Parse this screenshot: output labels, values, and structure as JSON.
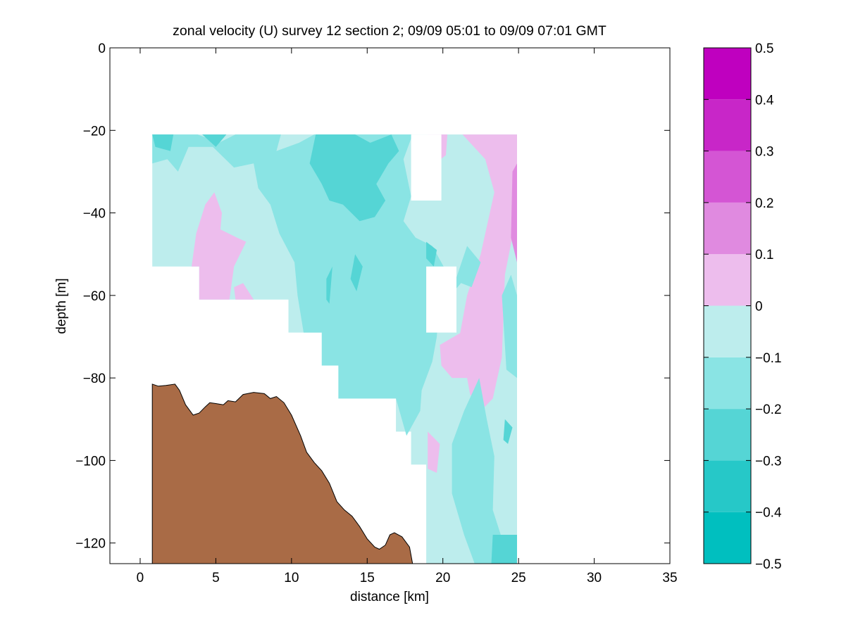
{
  "chart_data": {
    "type": "heatmap",
    "title": "zonal velocity (U) survey 12 section 2; 09/09 05:01 to 09/09 07:01 GMT",
    "xlabel": "distance [km]",
    "ylabel": "depth [m]",
    "xlim": [
      -2,
      35
    ],
    "ylim": [
      -125,
      0
    ],
    "x_ticks": [
      0,
      5,
      10,
      15,
      20,
      25,
      30,
      35
    ],
    "y_ticks": [
      0,
      -20,
      -40,
      -60,
      -80,
      -100,
      -120
    ],
    "x_tick_labels": [
      "0",
      "5",
      "10",
      "15",
      "20",
      "25",
      "30",
      "35"
    ],
    "y_tick_labels": [
      "0",
      "−20",
      "−40",
      "−60",
      "−80",
      "−100",
      "−120"
    ],
    "colorbar": {
      "range": [
        -0.5,
        0.5
      ],
      "levels": [
        -0.5,
        -0.4,
        -0.3,
        -0.2,
        -0.1,
        0,
        0.1,
        0.2,
        0.3,
        0.4,
        0.5
      ],
      "tick_labels": [
        "−0.5",
        "−0.4",
        "−0.3",
        "−0.2",
        "−0.1",
        "0",
        "0.1",
        "0.2",
        "0.3",
        "0.4",
        "0.5"
      ],
      "colors": [
        "#00bfbf",
        "#26c8c8",
        "#55d5d5",
        "#8ae4e4",
        "#bdeded",
        "#edbded",
        "#e08ae0",
        "#d455d4",
        "#c826c8",
        "#bf00bf"
      ]
    },
    "bathymetry": {
      "color": "#a96b46",
      "points": [
        [
          0.8,
          -81.5
        ],
        [
          1.2,
          -82
        ],
        [
          1.7,
          -81.8
        ],
        [
          2.3,
          -81.5
        ],
        [
          2.6,
          -83
        ],
        [
          3,
          -86.5
        ],
        [
          3.5,
          -89
        ],
        [
          3.9,
          -88.5
        ],
        [
          4.3,
          -87
        ],
        [
          4.6,
          -86
        ],
        [
          5,
          -86.2
        ],
        [
          5.5,
          -86.5
        ],
        [
          5.8,
          -85.5
        ],
        [
          6.3,
          -85.8
        ],
        [
          6.8,
          -84
        ],
        [
          7.5,
          -83.5
        ],
        [
          8.2,
          -83.8
        ],
        [
          8.6,
          -85
        ],
        [
          9,
          -84.5
        ],
        [
          9.5,
          -86
        ],
        [
          10,
          -89
        ],
        [
          10.6,
          -94
        ],
        [
          11,
          -98
        ],
        [
          11.5,
          -100.5
        ],
        [
          12,
          -102.5
        ],
        [
          12.5,
          -105.5
        ],
        [
          13,
          -110
        ],
        [
          13.5,
          -112
        ],
        [
          14,
          -113.5
        ],
        [
          14.5,
          -116
        ],
        [
          15,
          -119
        ],
        [
          15.5,
          -121
        ],
        [
          15.8,
          -121.5
        ],
        [
          16.2,
          -120.5
        ],
        [
          16.5,
          -118
        ],
        [
          16.8,
          -117.5
        ],
        [
          17.3,
          -118.5
        ],
        [
          17.8,
          -121
        ],
        [
          18,
          -125
        ]
      ]
    },
    "regions": [
      {
        "v": -0.05,
        "poly": [
          [
            0.8,
            -21
          ],
          [
            24.9,
            -21
          ],
          [
            24.9,
            -125
          ],
          [
            18.9,
            -125
          ],
          [
            18.9,
            -101
          ],
          [
            17.9,
            -101
          ],
          [
            17.9,
            -93
          ],
          [
            16.9,
            -93
          ],
          [
            16.9,
            -85
          ],
          [
            13.1,
            -85
          ],
          [
            13.1,
            -77
          ],
          [
            12,
            -77
          ],
          [
            12,
            -69
          ],
          [
            9.8,
            -69
          ],
          [
            9.8,
            -61
          ],
          [
            3.9,
            -61
          ],
          [
            3.9,
            -53
          ],
          [
            0.8,
            -53
          ]
        ]
      },
      {
        "v": 0.05,
        "poly": [
          [
            21.3,
            -21
          ],
          [
            24.9,
            -21
          ],
          [
            24.9,
            -40
          ],
          [
            24.1,
            -55
          ],
          [
            23.9,
            -75
          ],
          [
            23.3,
            -85
          ],
          [
            22.5,
            -88
          ],
          [
            21.8,
            -84
          ],
          [
            21.1,
            -70
          ],
          [
            21.6,
            -60
          ],
          [
            22.5,
            -50
          ],
          [
            23.4,
            -35
          ],
          [
            22.8,
            -27
          ]
        ]
      },
      {
        "v": 0.05,
        "poly": [
          [
            19,
            -21
          ],
          [
            20.3,
            -21
          ],
          [
            20.2,
            -26
          ],
          [
            19.5,
            -28
          ]
        ]
      },
      {
        "v": 0.05,
        "poly": [
          [
            19.8,
            -72
          ],
          [
            21.2,
            -69
          ],
          [
            21.6,
            -80
          ],
          [
            20.6,
            -80
          ],
          [
            19.9,
            -77
          ]
        ]
      },
      {
        "v": 0.05,
        "poly": [
          [
            19,
            -93
          ],
          [
            19.8,
            -96
          ],
          [
            19.6,
            -103
          ],
          [
            19,
            -102
          ]
        ]
      },
      {
        "v": 0.05,
        "poly": [
          [
            3.4,
            -53
          ],
          [
            3.7,
            -45
          ],
          [
            4.3,
            -38
          ],
          [
            4.9,
            -35
          ],
          [
            5.4,
            -40
          ],
          [
            5.3,
            -44
          ],
          [
            6.4,
            -46
          ],
          [
            7,
            -47
          ],
          [
            6.2,
            -53
          ],
          [
            5.9,
            -61
          ],
          [
            3.9,
            -61
          ],
          [
            3.9,
            -53
          ]
        ]
      },
      {
        "v": 0.05,
        "poly": [
          [
            6.2,
            -58
          ],
          [
            6.8,
            -57
          ],
          [
            7.5,
            -61
          ],
          [
            6.3,
            -61
          ]
        ]
      },
      {
        "v": 0.15,
        "poly": [
          [
            24.6,
            -30
          ],
          [
            24.9,
            -28
          ],
          [
            24.9,
            -52
          ],
          [
            24.5,
            -46
          ]
        ]
      },
      {
        "v": -0.15,
        "poly": [
          [
            0.8,
            -21
          ],
          [
            3.8,
            -21
          ],
          [
            5.2,
            -23
          ],
          [
            6.3,
            -21
          ],
          [
            9.3,
            -21
          ],
          [
            9,
            -25
          ],
          [
            10.5,
            -23
          ],
          [
            11.5,
            -21
          ],
          [
            18,
            -21
          ],
          [
            17.4,
            -27
          ],
          [
            17.9,
            -36
          ],
          [
            17.4,
            -42
          ],
          [
            18.2,
            -46
          ],
          [
            19.3,
            -48
          ],
          [
            20.2,
            -54
          ],
          [
            20.5,
            -60
          ],
          [
            19.7,
            -64
          ],
          [
            19.6,
            -70
          ],
          [
            19.3,
            -76
          ],
          [
            18.6,
            -83
          ],
          [
            18.5,
            -88
          ],
          [
            17.6,
            -94
          ],
          [
            16.9,
            -85
          ],
          [
            13.1,
            -85
          ],
          [
            13.1,
            -77
          ],
          [
            12,
            -77
          ],
          [
            12,
            -69
          ],
          [
            10.8,
            -69
          ],
          [
            10.4,
            -60
          ],
          [
            10.2,
            -52
          ],
          [
            9.2,
            -45
          ],
          [
            8.6,
            -38
          ],
          [
            7.8,
            -34
          ],
          [
            7.5,
            -28
          ],
          [
            6.2,
            -29
          ],
          [
            4.8,
            -24
          ],
          [
            3.2,
            -24
          ],
          [
            2.5,
            -30
          ],
          [
            1.8,
            -27
          ],
          [
            0.8,
            -28
          ]
        ]
      },
      {
        "v": -0.15,
        "poly": [
          [
            20.5,
            -60
          ],
          [
            21.6,
            -48
          ],
          [
            22.5,
            -52
          ],
          [
            21.9,
            -58
          ],
          [
            21.2,
            -57
          ]
        ]
      },
      {
        "v": -0.15,
        "poly": [
          [
            20.6,
            -96
          ],
          [
            21.4,
            -88
          ],
          [
            22.4,
            -80
          ],
          [
            22.9,
            -90
          ],
          [
            23.4,
            -99
          ],
          [
            23.3,
            -112
          ],
          [
            24,
            -120
          ],
          [
            24.9,
            -118
          ],
          [
            24.9,
            -125
          ],
          [
            22.1,
            -125
          ],
          [
            21.4,
            -118
          ],
          [
            20.6,
            -108
          ]
        ]
      },
      {
        "v": -0.15,
        "poly": [
          [
            23.9,
            -60
          ],
          [
            24.5,
            -55
          ],
          [
            24.9,
            -60
          ],
          [
            24.9,
            -80
          ],
          [
            24.2,
            -78
          ]
        ]
      },
      {
        "v": -0.25,
        "poly": [
          [
            11.6,
            -21
          ],
          [
            14.2,
            -21
          ],
          [
            15.2,
            -23
          ],
          [
            16.6,
            -21
          ],
          [
            17.1,
            -25
          ],
          [
            16.4,
            -28
          ],
          [
            15.6,
            -33
          ],
          [
            16.2,
            -37
          ],
          [
            15.5,
            -41
          ],
          [
            14.5,
            -42
          ],
          [
            13.4,
            -38
          ],
          [
            12.5,
            -37
          ],
          [
            12,
            -33
          ],
          [
            11.2,
            -28
          ]
        ]
      },
      {
        "v": -0.25,
        "poly": [
          [
            0.8,
            -21
          ],
          [
            2.2,
            -21
          ],
          [
            2,
            -25
          ],
          [
            1,
            -24
          ]
        ]
      },
      {
        "v": -0.25,
        "poly": [
          [
            4.1,
            -21
          ],
          [
            5.7,
            -21
          ],
          [
            5,
            -24
          ]
        ]
      },
      {
        "v": -0.25,
        "poly": [
          [
            18.9,
            -47
          ],
          [
            19.6,
            -49
          ],
          [
            19.4,
            -53
          ],
          [
            18.9,
            -51
          ]
        ]
      },
      {
        "v": -0.25,
        "poly": [
          [
            13.9,
            -56
          ],
          [
            14.2,
            -50
          ],
          [
            14.7,
            -53
          ],
          [
            14.3,
            -59
          ]
        ]
      },
      {
        "v": -0.25,
        "poly": [
          [
            12.3,
            -56
          ],
          [
            12.7,
            -53
          ],
          [
            12.5,
            -62
          ],
          [
            12.3,
            -61
          ]
        ]
      },
      {
        "v": -0.25,
        "poly": [
          [
            23.3,
            -118
          ],
          [
            24.9,
            -118
          ],
          [
            24.9,
            -125
          ],
          [
            23.2,
            -125
          ]
        ]
      },
      {
        "v": -0.25,
        "poly": [
          [
            24.1,
            -90
          ],
          [
            24.6,
            -92
          ],
          [
            24.3,
            -96
          ],
          [
            24.0,
            -95
          ]
        ]
      }
    ],
    "gaps": [
      [
        [
          17.9,
          -21
        ],
        [
          19.9,
          -21
        ],
        [
          19.9,
          -37
        ],
        [
          17.9,
          -37
        ]
      ],
      [
        [
          18.9,
          -53
        ],
        [
          20.9,
          -53
        ],
        [
          20.9,
          -69
        ],
        [
          18.9,
          -69
        ]
      ]
    ]
  }
}
